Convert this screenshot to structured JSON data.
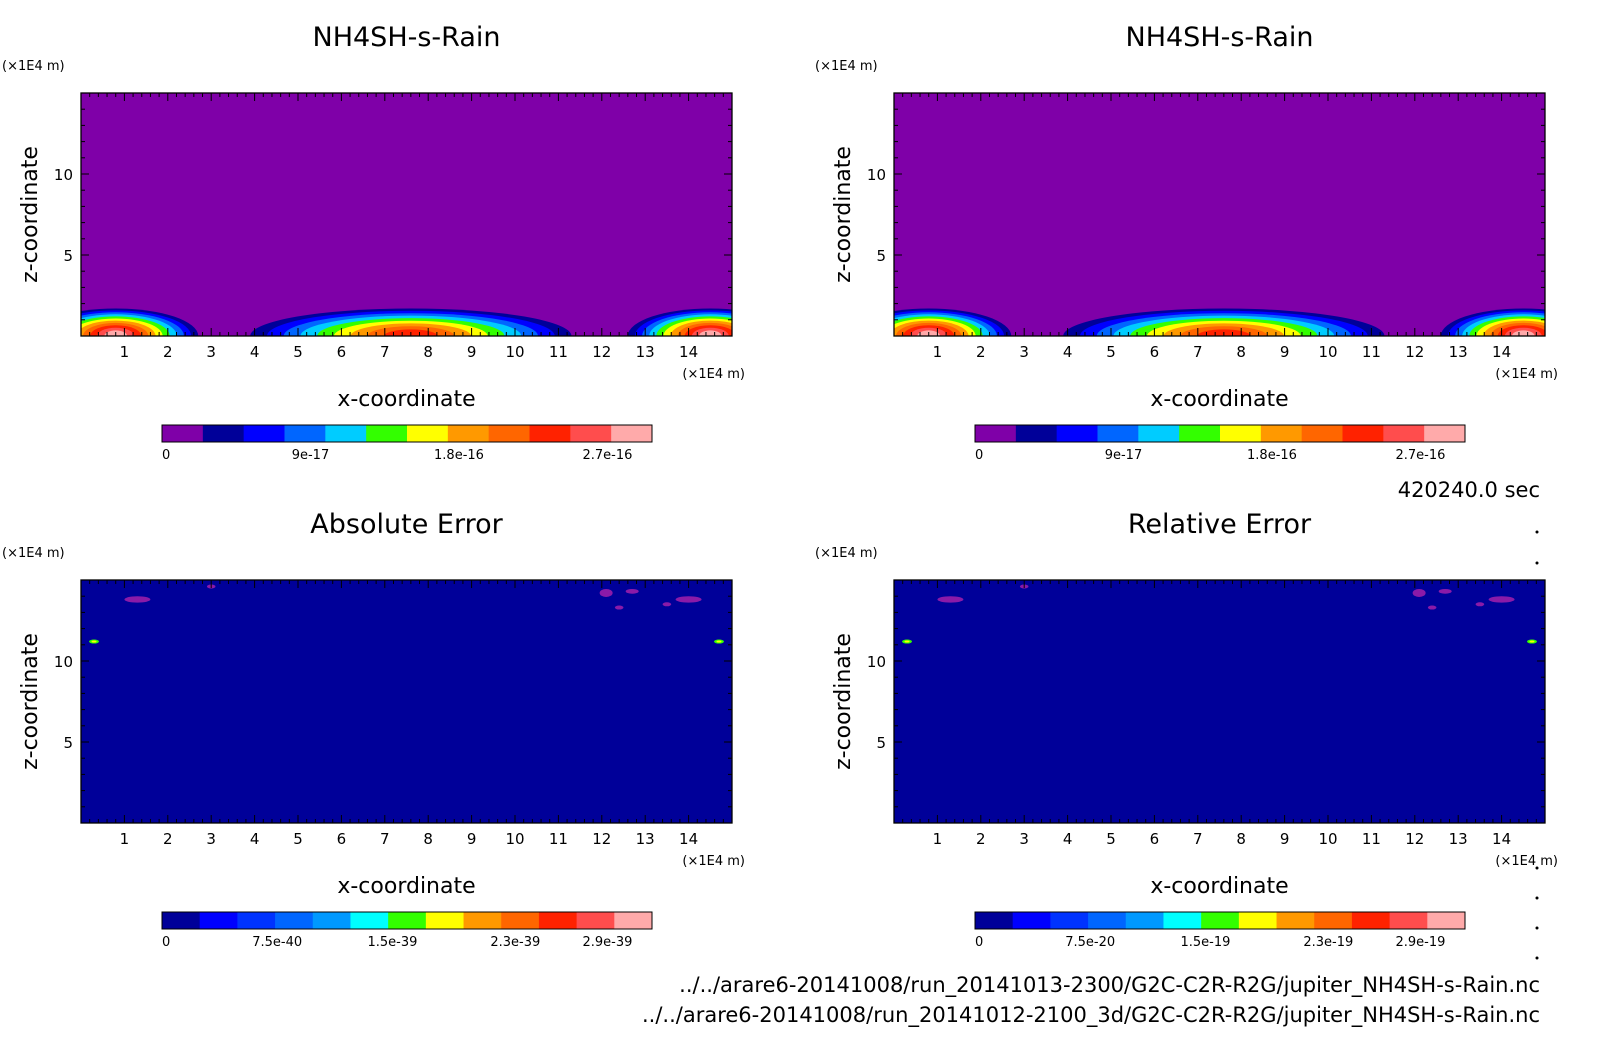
{
  "time_label": "420240.0 sec",
  "files": [
    "../../arare6-20141008/run_20141013-2300/G2C-C2R-R2G/jupiter_NH4SH-s-Rain.nc",
    "../../arare6-20141008/run_20141012-2100_3d/G2C-C2R-R2G/jupiter_NH4SH-s-Rain.nc"
  ],
  "chart_data": [
    {
      "type": "heatmap",
      "title": "NH4SH-s-Rain",
      "xlabel": "x-coordinate",
      "ylabel": "z-coordinate",
      "x_unit": "(×1E4 m)",
      "y_unit": "(×1E4 m)",
      "xlim": [
        0,
        15
      ],
      "ylim": [
        0,
        15
      ],
      "xticks": [
        1,
        2,
        3,
        4,
        5,
        6,
        7,
        8,
        9,
        10,
        11,
        12,
        13,
        14
      ],
      "yticks": [
        5,
        10
      ],
      "background": "#7f00a8",
      "colorbar": {
        "colors": [
          "#7f00a8",
          "#000099",
          "#0000ff",
          "#0066ff",
          "#00ccff",
          "#33ff00",
          "#ffff00",
          "#ff9900",
          "#ff6600",
          "#ff2200",
          "#ff4d4d",
          "#ffaaaa"
        ],
        "tick_values": [
          0,
          9e-17,
          1.8e-16,
          2.7e-16
        ],
        "tick_labels": [
          "0",
          "9e-17",
          "1.8e-16",
          "2.7e-16"
        ]
      },
      "features": [
        {
          "kind": "cell",
          "x": 0.8,
          "z": 0.0,
          "half_width": 1.9,
          "max": 3e-16
        },
        {
          "kind": "cell",
          "x": 7.6,
          "z": 0.0,
          "half_width": 3.7,
          "max": 2.3e-16
        },
        {
          "kind": "cell",
          "x": 14.5,
          "z": 0.0,
          "half_width": 1.9,
          "max": 3e-16
        }
      ]
    },
    {
      "type": "heatmap",
      "title": "NH4SH-s-Rain",
      "xlabel": "x-coordinate",
      "ylabel": "z-coordinate",
      "x_unit": "(×1E4 m)",
      "y_unit": "(×1E4 m)",
      "xlim": [
        0,
        15
      ],
      "ylim": [
        0,
        15
      ],
      "xticks": [
        1,
        2,
        3,
        4,
        5,
        6,
        7,
        8,
        9,
        10,
        11,
        12,
        13,
        14
      ],
      "yticks": [
        5,
        10
      ],
      "background": "#7f00a8",
      "colorbar": {
        "colors": [
          "#7f00a8",
          "#000099",
          "#0000ff",
          "#0066ff",
          "#00ccff",
          "#33ff00",
          "#ffff00",
          "#ff9900",
          "#ff6600",
          "#ff2200",
          "#ff4d4d",
          "#ffaaaa"
        ],
        "tick_values": [
          0,
          9e-17,
          1.8e-16,
          2.7e-16
        ],
        "tick_labels": [
          "0",
          "9e-17",
          "1.8e-16",
          "2.7e-16"
        ]
      },
      "features": [
        {
          "kind": "cell",
          "x": 0.8,
          "z": 0.0,
          "half_width": 1.9,
          "max": 3e-16
        },
        {
          "kind": "cell",
          "x": 7.6,
          "z": 0.0,
          "half_width": 3.7,
          "max": 2.3e-16
        },
        {
          "kind": "cell",
          "x": 14.5,
          "z": 0.0,
          "half_width": 1.9,
          "max": 3e-16
        }
      ]
    },
    {
      "type": "heatmap",
      "title": "Absolute Error",
      "xlabel": "x-coordinate",
      "ylabel": "z-coordinate",
      "x_unit": "(×1E4 m)",
      "y_unit": "(×1E4 m)",
      "xlim": [
        0,
        15
      ],
      "ylim": [
        0,
        15
      ],
      "xticks": [
        1,
        2,
        3,
        4,
        5,
        6,
        7,
        8,
        9,
        10,
        11,
        12,
        13,
        14
      ],
      "yticks": [
        5,
        10
      ],
      "background": "#000099",
      "colorbar": {
        "colors": [
          "#000099",
          "#0000ff",
          "#0033ff",
          "#0066ff",
          "#0099ff",
          "#00ffff",
          "#33ff00",
          "#ffff00",
          "#ff9900",
          "#ff6600",
          "#ff2200",
          "#ff4d4d",
          "#ffaaaa"
        ],
        "tick_values": [
          0,
          7.5e-40,
          1.5e-39,
          2.3e-39,
          2.9e-39
        ],
        "tick_labels": [
          "0",
          "7.5e-40",
          "1.5e-39",
          "2.3e-39",
          "2.9e-39"
        ]
      },
      "features": [
        {
          "kind": "spot",
          "x": 1.3,
          "z": 13.8,
          "w": 0.6,
          "h": 0.4
        },
        {
          "kind": "spot",
          "x": 3.0,
          "z": 14.6,
          "w": 0.2,
          "h": 0.15
        },
        {
          "kind": "spot",
          "x": 12.1,
          "z": 14.2,
          "w": 0.3,
          "h": 0.5
        },
        {
          "kind": "spot",
          "x": 12.7,
          "z": 14.3,
          "w": 0.3,
          "h": 0.3
        },
        {
          "kind": "spot",
          "x": 14.0,
          "z": 13.8,
          "w": 0.6,
          "h": 0.4
        },
        {
          "kind": "spot",
          "x": 13.5,
          "z": 13.5,
          "w": 0.2,
          "h": 0.15
        },
        {
          "kind": "spot",
          "x": 12.4,
          "z": 13.3,
          "w": 0.2,
          "h": 0.1
        },
        {
          "kind": "edge",
          "x": 0.3,
          "z": 11.2
        },
        {
          "kind": "edge",
          "x": 14.7,
          "z": 11.2
        }
      ]
    },
    {
      "type": "heatmap",
      "title": "Relative Error",
      "xlabel": "x-coordinate",
      "ylabel": "z-coordinate",
      "x_unit": "(×1E4 m)",
      "y_unit": "(×1E4 m)",
      "xlim": [
        0,
        15
      ],
      "ylim": [
        0,
        15
      ],
      "xticks": [
        1,
        2,
        3,
        4,
        5,
        6,
        7,
        8,
        9,
        10,
        11,
        12,
        13,
        14
      ],
      "yticks": [
        5,
        10
      ],
      "background": "#000099",
      "colorbar": {
        "colors": [
          "#000099",
          "#0000ff",
          "#0033ff",
          "#0066ff",
          "#0099ff",
          "#00ffff",
          "#33ff00",
          "#ffff00",
          "#ff9900",
          "#ff6600",
          "#ff2200",
          "#ff4d4d",
          "#ffaaaa"
        ],
        "tick_values": [
          0,
          7.5e-20,
          1.5e-19,
          2.3e-19,
          2.9e-19
        ],
        "tick_labels": [
          "0",
          "7.5e-20",
          "1.5e-19",
          "2.3e-19",
          "2.9e-19"
        ]
      },
      "features": [
        {
          "kind": "spot",
          "x": 1.3,
          "z": 13.8,
          "w": 0.6,
          "h": 0.4
        },
        {
          "kind": "spot",
          "x": 3.0,
          "z": 14.6,
          "w": 0.2,
          "h": 0.15
        },
        {
          "kind": "spot",
          "x": 12.1,
          "z": 14.2,
          "w": 0.3,
          "h": 0.5
        },
        {
          "kind": "spot",
          "x": 12.7,
          "z": 14.3,
          "w": 0.3,
          "h": 0.3
        },
        {
          "kind": "spot",
          "x": 14.0,
          "z": 13.8,
          "w": 0.6,
          "h": 0.4
        },
        {
          "kind": "spot",
          "x": 13.5,
          "z": 13.5,
          "w": 0.2,
          "h": 0.15
        },
        {
          "kind": "spot",
          "x": 12.4,
          "z": 13.3,
          "w": 0.2,
          "h": 0.1
        },
        {
          "kind": "edge",
          "x": 0.3,
          "z": 11.2
        },
        {
          "kind": "edge",
          "x": 14.7,
          "z": 11.2
        }
      ]
    }
  ]
}
